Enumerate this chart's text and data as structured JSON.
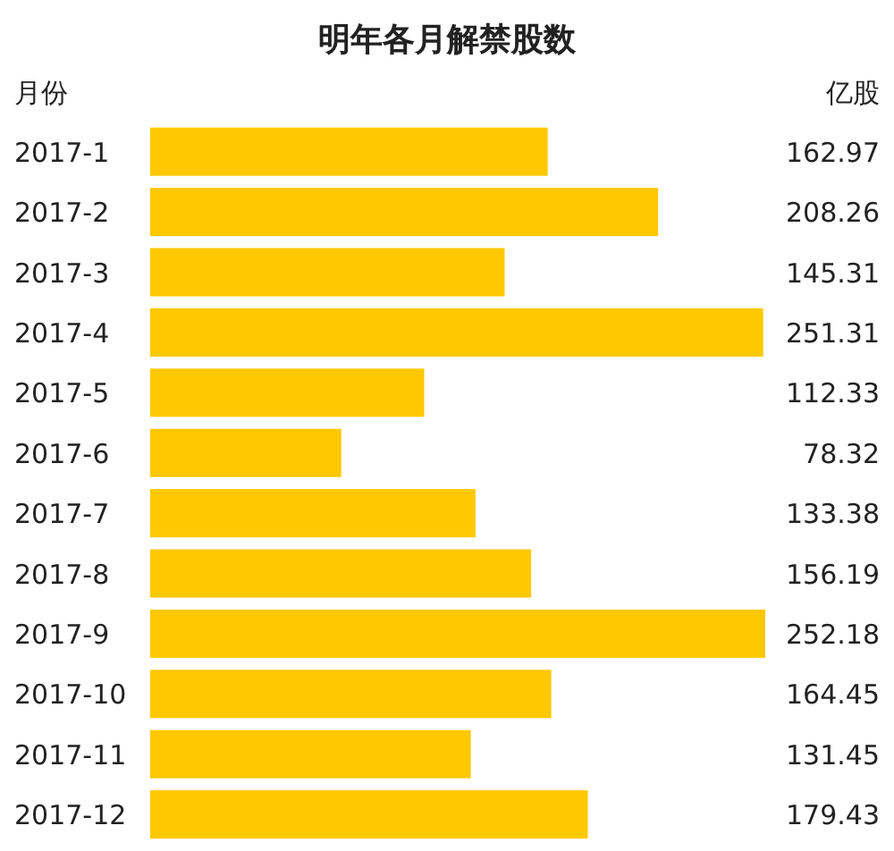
{
  "chart_data": {
    "type": "bar",
    "orientation": "horizontal",
    "title": "明年各月解禁股数",
    "ylabel": "月份",
    "xlabel": "亿股",
    "categories": [
      "2017-1",
      "2017-2",
      "2017-3",
      "2017-4",
      "2017-5",
      "2017-6",
      "2017-7",
      "2017-8",
      "2017-9",
      "2017-10",
      "2017-11",
      "2017-12"
    ],
    "values": [
      162.97,
      208.26,
      145.31,
      251.31,
      112.33,
      78.32,
      133.38,
      156.19,
      252.18,
      164.45,
      131.45,
      179.43
    ],
    "color": "#ffc800",
    "data_labels": true
  }
}
